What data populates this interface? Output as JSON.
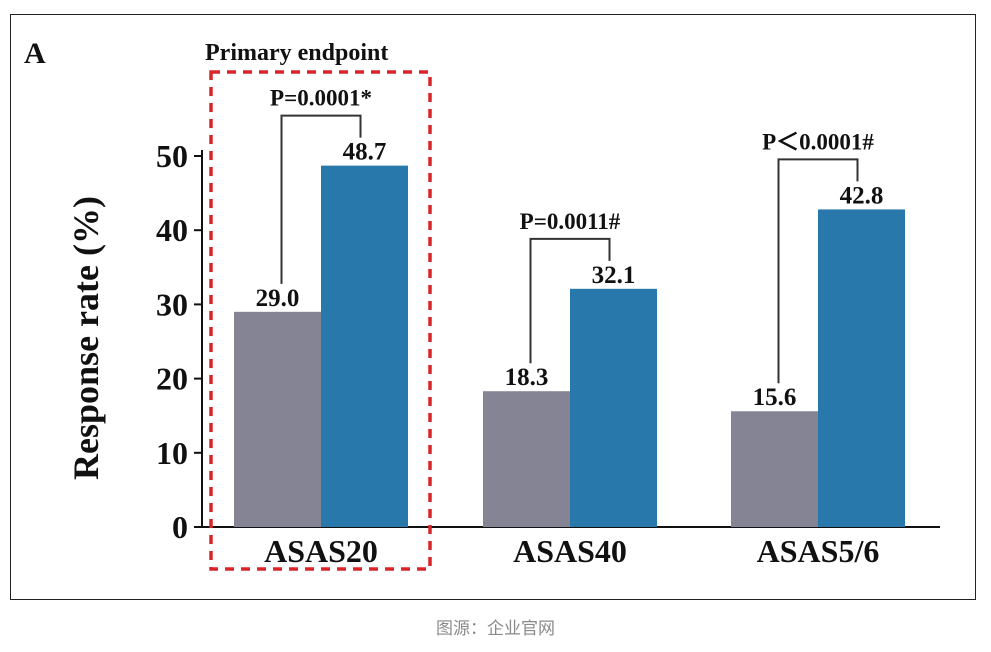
{
  "panel_label": "A",
  "primary_endpoint_label": "Primary endpoint",
  "caption": "图源：企业官网",
  "colors": {
    "series_a": "#858494",
    "series_b": "#2878ab",
    "highlight": "#d9252a",
    "axis": "#111111"
  },
  "chart_data": {
    "type": "bar",
    "title": "",
    "xlabel": "",
    "ylabel": "Response rate (%)",
    "ylim": [
      0,
      50
    ],
    "yticks": [
      0,
      10,
      20,
      30,
      40,
      50
    ],
    "categories": [
      "ASAS20",
      "ASAS40",
      "ASAS5/6"
    ],
    "series": [
      {
        "values": [
          29.0,
          18.3,
          15.6
        ],
        "labels": [
          "29.0",
          "18.3",
          "15.6"
        ]
      },
      {
        "values": [
          48.7,
          32.1,
          42.8
        ],
        "labels": [
          "48.7",
          "32.1",
          "42.8"
        ]
      }
    ],
    "p_values": [
      "P=0.0001*",
      "P=0.0011#",
      "P＜0.0001#"
    ],
    "highlighted_category": "ASAS20"
  }
}
